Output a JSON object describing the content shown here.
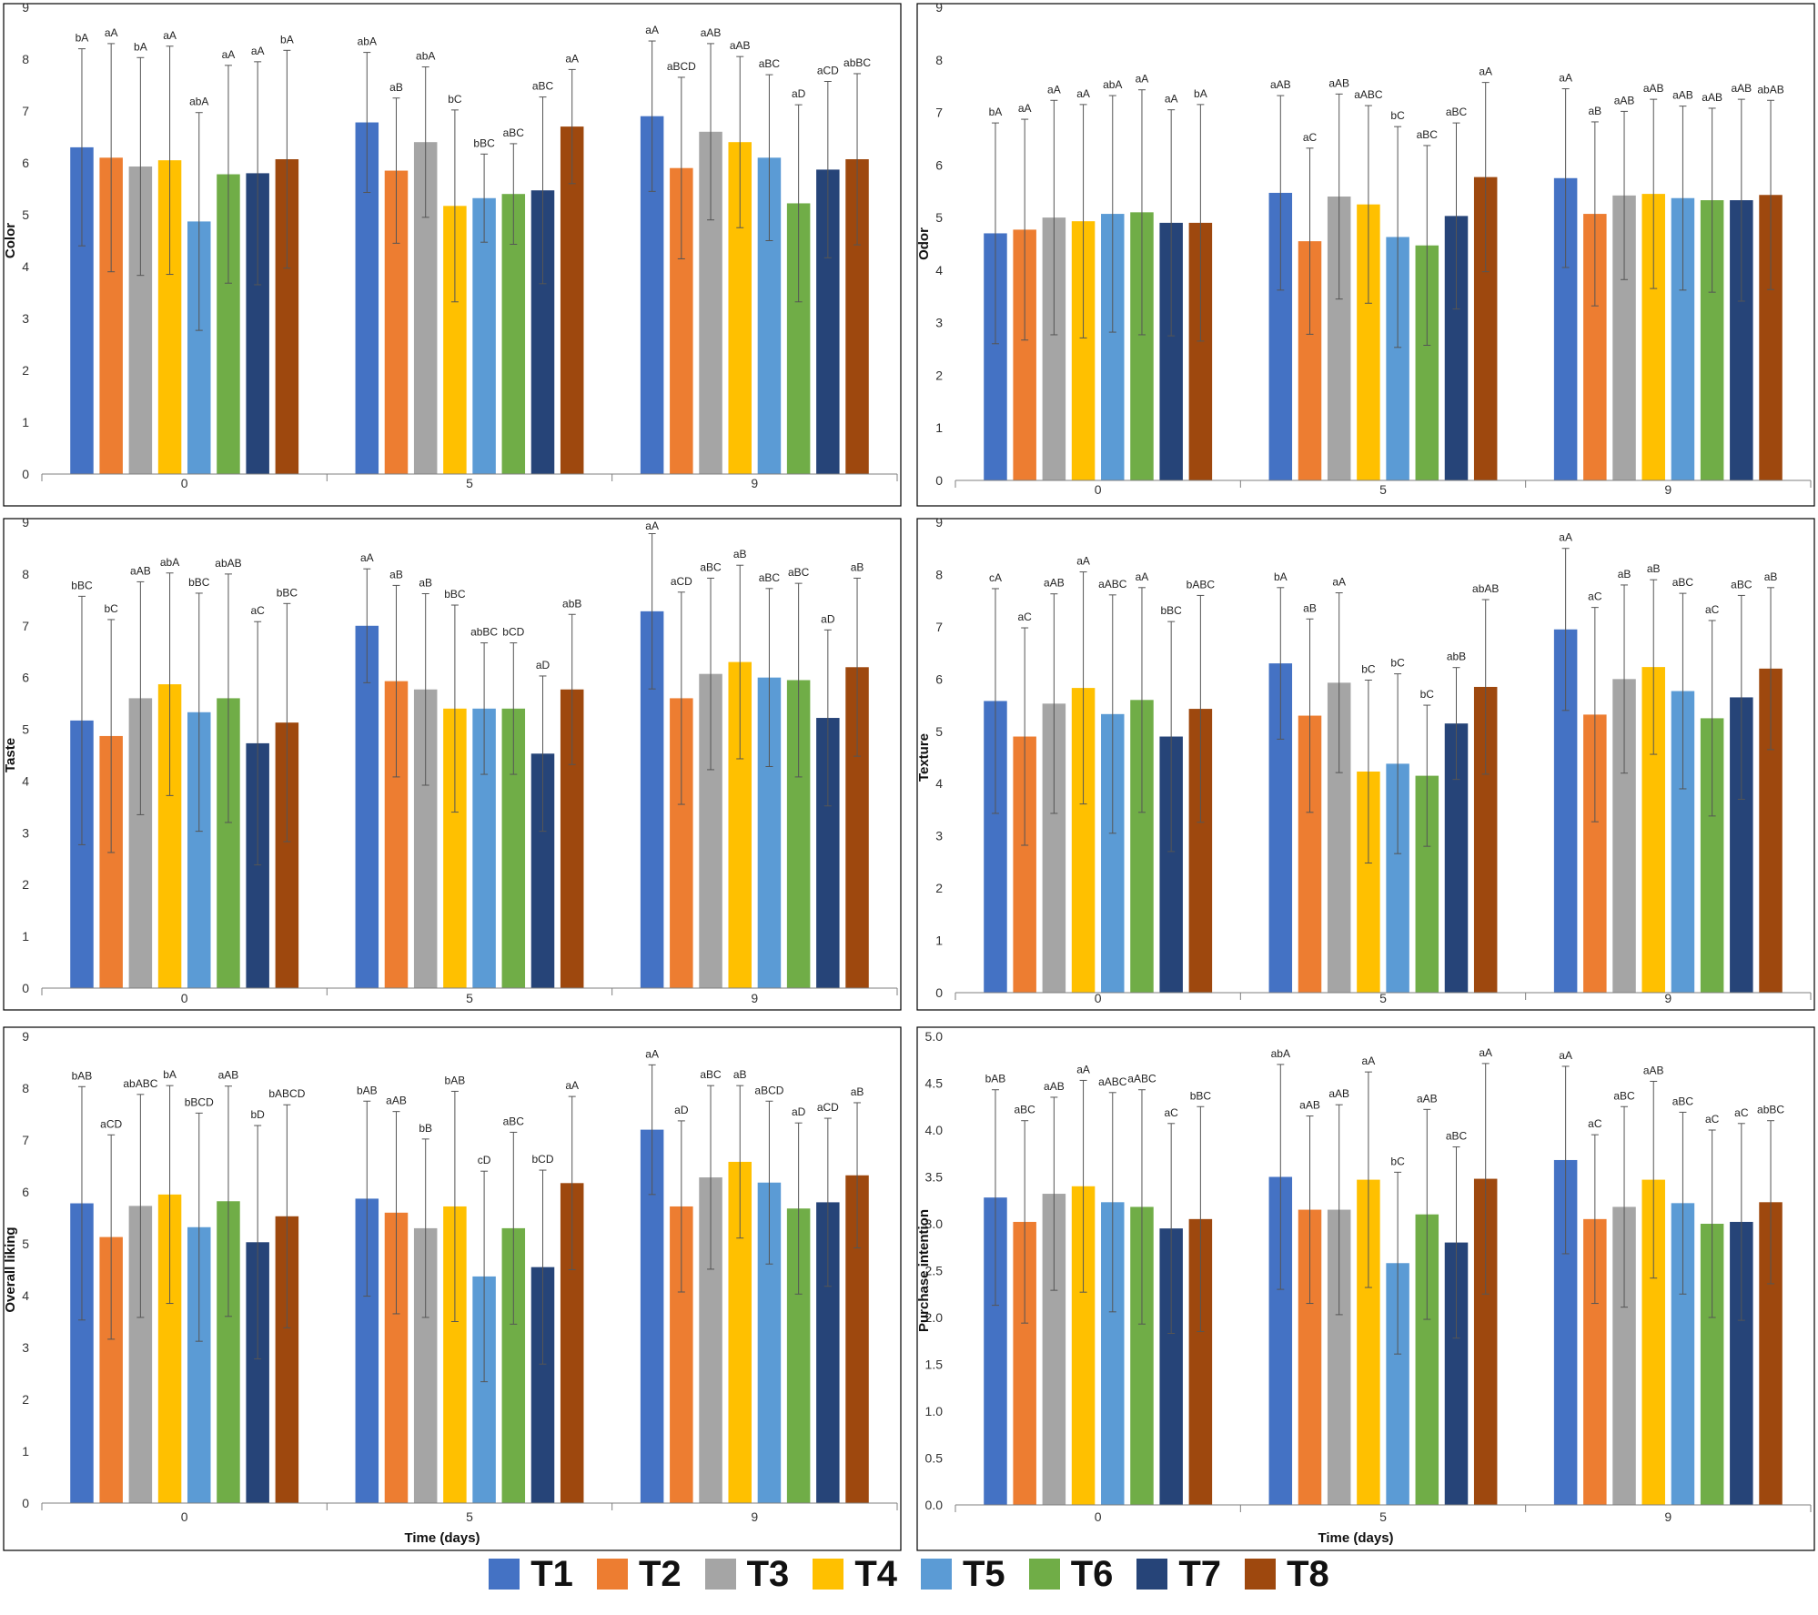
{
  "series_names": [
    "T1",
    "T2",
    "T3",
    "T4",
    "T5",
    "T6",
    "T7",
    "T8"
  ],
  "series_colors": [
    "#4472C4",
    "#ED7D31",
    "#A5A5A5",
    "#FFC000",
    "#5B9BD5",
    "#70AD47",
    "#264478",
    "#9E480E"
  ],
  "chart_data": [
    {
      "type": "bar",
      "title": "",
      "xlabel": "",
      "ylabel": "Color",
      "categories": [
        "0",
        "5",
        "9"
      ],
      "ylim": [
        0,
        9
      ],
      "yticks": [
        "0",
        "1",
        "2",
        "3",
        "4",
        "5",
        "6",
        "7",
        "8",
        "9"
      ],
      "series": [
        {
          "name": "T1",
          "values": [
            6.3,
            6.78,
            6.9
          ],
          "errors": [
            1.9,
            1.35,
            1.45
          ],
          "labels": [
            "bA",
            "abA",
            "aA"
          ]
        },
        {
          "name": "T2",
          "values": [
            6.1,
            5.85,
            5.9
          ],
          "errors": [
            2.2,
            1.4,
            1.75
          ],
          "labels": [
            "aA",
            "aB",
            "aBCD"
          ]
        },
        {
          "name": "T3",
          "values": [
            5.93,
            6.4,
            6.6
          ],
          "errors": [
            2.1,
            1.45,
            1.7
          ],
          "labels": [
            "bA",
            "abA",
            "aAB"
          ]
        },
        {
          "name": "T4",
          "values": [
            6.05,
            5.17,
            6.4
          ],
          "errors": [
            2.2,
            1.85,
            1.65
          ],
          "labels": [
            "aA",
            "bC",
            "aAB"
          ]
        },
        {
          "name": "T5",
          "values": [
            4.87,
            5.32,
            6.1
          ],
          "errors": [
            2.1,
            0.85,
            1.6
          ],
          "labels": [
            "abA",
            "bBC",
            "aBC"
          ]
        },
        {
          "name": "T6",
          "values": [
            5.78,
            5.4,
            5.22
          ],
          "errors": [
            2.1,
            0.97,
            1.9
          ],
          "labels": [
            "aA",
            "aBC",
            "aD"
          ]
        },
        {
          "name": "T7",
          "values": [
            5.8,
            5.47,
            5.87
          ],
          "errors": [
            2.15,
            1.8,
            1.7
          ],
          "labels": [
            "aA",
            "aBC",
            "aCD"
          ]
        },
        {
          "name": "T8",
          "values": [
            6.07,
            6.7,
            6.07
          ],
          "errors": [
            2.1,
            1.1,
            1.65
          ],
          "labels": [
            "bA",
            "aA",
            "abBC"
          ]
        }
      ]
    },
    {
      "type": "bar",
      "title": "",
      "xlabel": "",
      "ylabel": "Odor",
      "categories": [
        "0",
        "5",
        "9"
      ],
      "ylim": [
        0,
        9
      ],
      "yticks": [
        "0",
        "1",
        "2",
        "3",
        "4",
        "5",
        "6",
        "7",
        "8",
        "9"
      ],
      "series": [
        {
          "name": "T1",
          "values": [
            4.7,
            5.47,
            5.75
          ],
          "errors": [
            2.1,
            1.85,
            1.7
          ],
          "labels": [
            "bA",
            "aAB",
            "aA"
          ]
        },
        {
          "name": "T2",
          "values": [
            4.77,
            4.55,
            5.07
          ],
          "errors": [
            2.1,
            1.77,
            1.75
          ],
          "labels": [
            "aA",
            "aC",
            "aB"
          ]
        },
        {
          "name": "T3",
          "values": [
            5.0,
            5.4,
            5.42
          ],
          "errors": [
            2.23,
            1.95,
            1.6
          ],
          "labels": [
            "aA",
            "aAB",
            "aAB"
          ]
        },
        {
          "name": "T4",
          "values": [
            4.93,
            5.25,
            5.45
          ],
          "errors": [
            2.22,
            1.88,
            1.8
          ],
          "labels": [
            "aA",
            "aABC",
            "aAB"
          ]
        },
        {
          "name": "T5",
          "values": [
            5.07,
            4.63,
            5.37
          ],
          "errors": [
            2.25,
            2.1,
            1.75
          ],
          "labels": [
            "abA",
            "bC",
            "aAB"
          ]
        },
        {
          "name": "T6",
          "values": [
            5.1,
            4.47,
            5.33
          ],
          "errors": [
            2.33,
            1.9,
            1.75
          ],
          "labels": [
            "aA",
            "aBC",
            "aAB"
          ]
        },
        {
          "name": "T7",
          "values": [
            4.9,
            5.03,
            5.33
          ],
          "errors": [
            2.15,
            1.77,
            1.92
          ],
          "labels": [
            "aA",
            "aBC",
            "aAB"
          ]
        },
        {
          "name": "T8",
          "values": [
            4.9,
            5.77,
            5.43
          ],
          "errors": [
            2.25,
            1.8,
            1.8
          ],
          "labels": [
            "bA",
            "aA",
            "abAB"
          ]
        }
      ]
    },
    {
      "type": "bar",
      "title": "",
      "xlabel": "",
      "ylabel": "Taste",
      "categories": [
        "0",
        "5",
        "9"
      ],
      "ylim": [
        0,
        9
      ],
      "yticks": [
        "0",
        "1",
        "2",
        "3",
        "4",
        "5",
        "6",
        "7",
        "8",
        "9"
      ],
      "series": [
        {
          "name": "T1",
          "values": [
            5.17,
            7.0,
            7.28
          ],
          "errors": [
            2.4,
            1.1,
            1.5
          ],
          "labels": [
            "bBC",
            "aA",
            "aA"
          ]
        },
        {
          "name": "T2",
          "values": [
            4.87,
            5.93,
            5.6
          ],
          "errors": [
            2.25,
            1.85,
            2.05
          ],
          "labels": [
            "bC",
            "aB",
            "aCD"
          ]
        },
        {
          "name": "T3",
          "values": [
            5.6,
            5.77,
            6.07
          ],
          "errors": [
            2.25,
            1.85,
            1.85
          ],
          "labels": [
            "aAB",
            "aB",
            "aBC"
          ]
        },
        {
          "name": "T4",
          "values": [
            5.87,
            5.4,
            6.3
          ],
          "errors": [
            2.15,
            2.0,
            1.87
          ],
          "labels": [
            "abA",
            "bBC",
            "aB"
          ]
        },
        {
          "name": "T5",
          "values": [
            5.33,
            5.4,
            6.0
          ],
          "errors": [
            2.3,
            1.27,
            1.72
          ],
          "labels": [
            "bBC",
            "abBC",
            "aBC"
          ]
        },
        {
          "name": "T6",
          "values": [
            5.6,
            5.4,
            5.95
          ],
          "errors": [
            2.4,
            1.27,
            1.87
          ],
          "labels": [
            "abAB",
            "bCD",
            "aBC"
          ]
        },
        {
          "name": "T7",
          "values": [
            4.73,
            4.53,
            5.22
          ],
          "errors": [
            2.35,
            1.5,
            1.7
          ],
          "labels": [
            "aC",
            "aD",
            "aD"
          ]
        },
        {
          "name": "T8",
          "values": [
            5.13,
            5.77,
            6.2
          ],
          "errors": [
            2.3,
            1.45,
            1.72
          ],
          "labels": [
            "bBC",
            "abB",
            "aB"
          ]
        }
      ]
    },
    {
      "type": "bar",
      "title": "",
      "xlabel": "",
      "ylabel": "Texture",
      "categories": [
        "0",
        "5",
        "9"
      ],
      "ylim": [
        0,
        9
      ],
      "yticks": [
        "0",
        "1",
        "2",
        "3",
        "4",
        "5",
        "6",
        "7",
        "8",
        "9"
      ],
      "series": [
        {
          "name": "T1",
          "values": [
            5.58,
            6.3,
            6.95
          ],
          "errors": [
            2.15,
            1.45,
            1.55
          ],
          "labels": [
            "cA",
            "bA",
            "aA"
          ]
        },
        {
          "name": "T2",
          "values": [
            4.9,
            5.3,
            5.32
          ],
          "errors": [
            2.08,
            1.85,
            2.05
          ],
          "labels": [
            "aC",
            "aB",
            "aC"
          ]
        },
        {
          "name": "T3",
          "values": [
            5.53,
            5.93,
            6.0
          ],
          "errors": [
            2.1,
            1.72,
            1.8
          ],
          "labels": [
            "aAB",
            "aA",
            "aB"
          ]
        },
        {
          "name": "T4",
          "values": [
            5.83,
            4.23,
            6.23
          ],
          "errors": [
            2.22,
            1.75,
            1.67
          ],
          "labels": [
            "aA",
            "bC",
            "aB"
          ]
        },
        {
          "name": "T5",
          "values": [
            5.33,
            4.38,
            5.77
          ],
          "errors": [
            2.28,
            1.72,
            1.87
          ],
          "labels": [
            "aABC",
            "bC",
            "aBC"
          ]
        },
        {
          "name": "T6",
          "values": [
            5.6,
            4.15,
            5.25
          ],
          "errors": [
            2.15,
            1.35,
            1.87
          ],
          "labels": [
            "aA",
            "bC",
            "aC"
          ]
        },
        {
          "name": "T7",
          "values": [
            4.9,
            5.15,
            5.65
          ],
          "errors": [
            2.2,
            1.07,
            1.95
          ],
          "labels": [
            "bBC",
            "abB",
            "aBC"
          ]
        },
        {
          "name": "T8",
          "values": [
            5.43,
            5.85,
            6.2
          ],
          "errors": [
            2.17,
            1.67,
            1.55
          ],
          "labels": [
            "bABC",
            "abAB",
            "aB"
          ]
        }
      ]
    },
    {
      "type": "bar",
      "title": "",
      "xlabel": "Time (days)",
      "ylabel": "Overall liking",
      "categories": [
        "0",
        "5",
        "9"
      ],
      "ylim": [
        0,
        9
      ],
      "yticks": [
        "0",
        "1",
        "2",
        "3",
        "4",
        "5",
        "6",
        "7",
        "8",
        "9"
      ],
      "series": [
        {
          "name": "T1",
          "values": [
            5.78,
            5.87,
            7.2
          ],
          "errors": [
            2.25,
            1.88,
            1.25
          ],
          "labels": [
            "bAB",
            "bAB",
            "aA"
          ]
        },
        {
          "name": "T2",
          "values": [
            5.13,
            5.6,
            5.72
          ],
          "errors": [
            1.97,
            1.95,
            1.65
          ],
          "labels": [
            "aCD",
            "aAB",
            "aD"
          ]
        },
        {
          "name": "T3",
          "values": [
            5.73,
            5.3,
            6.28
          ],
          "errors": [
            2.15,
            1.72,
            1.77
          ],
          "labels": [
            "abABC",
            "bB",
            "aBC"
          ]
        },
        {
          "name": "T4",
          "values": [
            5.95,
            5.72,
            6.58
          ],
          "errors": [
            2.1,
            2.22,
            1.47
          ],
          "labels": [
            "bA",
            "bAB",
            "aB"
          ]
        },
        {
          "name": "T5",
          "values": [
            5.32,
            4.37,
            6.18
          ],
          "errors": [
            2.2,
            2.03,
            1.57
          ],
          "labels": [
            "bBCD",
            "cD",
            "aBCD"
          ]
        },
        {
          "name": "T6",
          "values": [
            5.82,
            5.3,
            5.68
          ],
          "errors": [
            2.22,
            1.85,
            1.65
          ],
          "labels": [
            "aAB",
            "aBC",
            "aD"
          ]
        },
        {
          "name": "T7",
          "values": [
            5.03,
            4.55,
            5.8
          ],
          "errors": [
            2.25,
            1.87,
            1.62
          ],
          "labels": [
            "bD",
            "bCD",
            "aCD"
          ]
        },
        {
          "name": "T8",
          "values": [
            5.53,
            6.17,
            6.32
          ],
          "errors": [
            2.15,
            1.67,
            1.4
          ],
          "labels": [
            "bABCD",
            "aA",
            "aB"
          ]
        }
      ]
    },
    {
      "type": "bar",
      "title": "",
      "xlabel": "Time (days)",
      "ylabel": "Purchase intention",
      "categories": [
        "0",
        "5",
        "9"
      ],
      "ylim": [
        0,
        5
      ],
      "yticks": [
        "0.0",
        "0.5",
        "1.0",
        "1.5",
        "2.0",
        "2.5",
        "3.0",
        "3.5",
        "4.0",
        "4.5",
        "5.0"
      ],
      "series": [
        {
          "name": "T1",
          "values": [
            3.28,
            3.5,
            3.68
          ],
          "errors": [
            1.15,
            1.2,
            1.0
          ],
          "labels": [
            "bAB",
            "abA",
            "aA"
          ]
        },
        {
          "name": "T2",
          "values": [
            3.02,
            3.15,
            3.05
          ],
          "errors": [
            1.08,
            1.0,
            0.9
          ],
          "labels": [
            "aBC",
            "aAB",
            "aC"
          ]
        },
        {
          "name": "T3",
          "values": [
            3.32,
            3.15,
            3.18
          ],
          "errors": [
            1.03,
            1.12,
            1.07
          ],
          "labels": [
            "aAB",
            "aAB",
            "aBC"
          ]
        },
        {
          "name": "T4",
          "values": [
            3.4,
            3.47,
            3.47
          ],
          "errors": [
            1.13,
            1.15,
            1.05
          ],
          "labels": [
            "aA",
            "aA",
            "aAB"
          ]
        },
        {
          "name": "T5",
          "values": [
            3.23,
            2.58,
            3.22
          ],
          "errors": [
            1.17,
            0.97,
            0.97
          ],
          "labels": [
            "aABC",
            "bC",
            "aBC"
          ]
        },
        {
          "name": "T6",
          "values": [
            3.18,
            3.1,
            3.0
          ],
          "errors": [
            1.25,
            1.12,
            1.0
          ],
          "labels": [
            "aABC",
            "aAB",
            "aC"
          ]
        },
        {
          "name": "T7",
          "values": [
            2.95,
            2.8,
            3.02
          ],
          "errors": [
            1.12,
            1.02,
            1.05
          ],
          "labels": [
            "aC",
            "aBC",
            "aC"
          ]
        },
        {
          "name": "T8",
          "values": [
            3.05,
            3.48,
            3.23
          ],
          "errors": [
            1.2,
            1.23,
            0.87
          ],
          "labels": [
            "bBC",
            "aA",
            "abBC"
          ]
        }
      ]
    }
  ]
}
